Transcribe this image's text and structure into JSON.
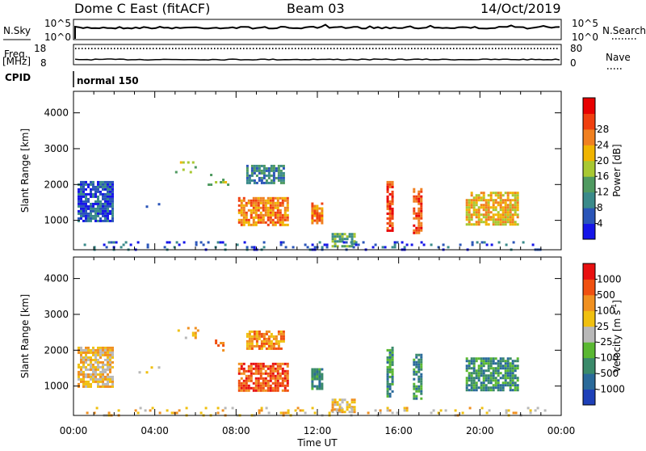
{
  "header": {
    "station": "Dome C East (fitACF)",
    "beam": "Beam 03",
    "date": "14/Oct/2019"
  },
  "top_panels": {
    "nsky_label": "N.Sky",
    "nsky_ticks": [
      "10^5",
      "10^0"
    ],
    "nsearch_label": "N.Search",
    "freq_label_top": "Freq.",
    "freq_label_bottom": "[MHz]",
    "freq_ticks": [
      "18",
      "8"
    ],
    "nave_label": "Nave",
    "nave_ticks": [
      "80",
      "0"
    ],
    "cpid_label": "CPID",
    "cpid_value": "normal 150"
  },
  "chart_data": [
    {
      "type": "heatmap",
      "name": "power",
      "ylabel": "Slant Range [km]",
      "ylim": [
        180,
        4600
      ],
      "y_ticks": [
        1000,
        2000,
        3000,
        4000
      ],
      "xlim": [
        0,
        24
      ],
      "x_tick_labels": [
        "00:00",
        "04:00",
        "08:00",
        "12:00",
        "16:00",
        "20:00",
        "00:00"
      ],
      "colorbar": {
        "label": "Power [dB]",
        "tick_labels": [
          "4",
          "8",
          "12",
          "16",
          "20",
          "24",
          "28"
        ],
        "colors": [
          "#1515e8",
          "#2a55b8",
          "#3a8a8a",
          "#4f9a60",
          "#a8c832",
          "#f0b400",
          "#f08020",
          "#f04010",
          "#e80000"
        ]
      },
      "regions": [
        {
          "x0": 8.1,
          "x1": 10.6,
          "y0": 900,
          "y1": 1650,
          "level": 6
        },
        {
          "x0": 5.0,
          "x1": 6.1,
          "y0": 2350,
          "y1": 2650,
          "level": 4
        },
        {
          "x0": 6.6,
          "x1": 7.6,
          "y0": 2000,
          "y1": 2300,
          "level": 4
        },
        {
          "x0": 8.5,
          "x1": 10.3,
          "y0": 2050,
          "y1": 2550,
          "level": 2
        },
        {
          "x0": 11.7,
          "x1": 12.2,
          "y0": 950,
          "y1": 1500,
          "level": 6
        },
        {
          "x0": 15.4,
          "x1": 15.7,
          "y0": 700,
          "y1": 2100,
          "level": 7
        },
        {
          "x0": 16.7,
          "x1": 17.1,
          "y0": 650,
          "y1": 1900,
          "level": 7
        },
        {
          "x0": 19.3,
          "x1": 21.9,
          "y0": 900,
          "y1": 1800,
          "level": 5
        },
        {
          "x0": 12.7,
          "x1": 13.8,
          "y0": 250,
          "y1": 650,
          "level": 3
        },
        {
          "x0": 0.2,
          "x1": 1.9,
          "y0": 1000,
          "y1": 2100,
          "level": 1
        },
        {
          "x0": 3.2,
          "x1": 4.2,
          "y0": 1350,
          "y1": 1550,
          "level": 1
        },
        {
          "x0": 0.5,
          "x1": 23.5,
          "y0": 190,
          "y1": 420,
          "level": 1
        }
      ]
    },
    {
      "type": "heatmap",
      "name": "velocity",
      "ylabel": "Slant Range [km]",
      "ylim": [
        180,
        4600
      ],
      "y_ticks": [
        1000,
        2000,
        3000,
        4000
      ],
      "xlim": [
        0,
        24
      ],
      "x_tick_labels": [
        "00:00",
        "04:00",
        "08:00",
        "12:00",
        "16:00",
        "20:00",
        "00:00"
      ],
      "xlabel": "Time UT",
      "colorbar": {
        "label": "Velocity [m s",
        "label_sup": "-1",
        "label_end": "]",
        "tick_labels": [
          "1000",
          "500",
          "100",
          "25",
          "-25",
          "-100",
          "-500",
          "-1000"
        ],
        "colors": [
          "#1e40b8",
          "#2a6a9a",
          "#3a8a6a",
          "#5ab832",
          "#b8b8b8",
          "#f0c010",
          "#f09020",
          "#f05010",
          "#e81010"
        ]
      },
      "regions": [
        {
          "x0": 8.1,
          "x1": 10.6,
          "y0": 900,
          "y1": 1650,
          "level": 7
        },
        {
          "x0": 5.0,
          "x1": 6.1,
          "y0": 2350,
          "y1": 2650,
          "level": 5
        },
        {
          "x0": 6.6,
          "x1": 7.6,
          "y0": 2000,
          "y1": 2300,
          "level": 6
        },
        {
          "x0": 8.5,
          "x1": 10.3,
          "y0": 2050,
          "y1": 2550,
          "level": 6
        },
        {
          "x0": 11.7,
          "x1": 12.2,
          "y0": 950,
          "y1": 1500,
          "level": 2
        },
        {
          "x0": 15.4,
          "x1": 15.7,
          "y0": 700,
          "y1": 2100,
          "level": 2
        },
        {
          "x0": 16.7,
          "x1": 17.1,
          "y0": 650,
          "y1": 1900,
          "level": 2
        },
        {
          "x0": 19.3,
          "x1": 21.9,
          "y0": 900,
          "y1": 1800,
          "level": 2
        },
        {
          "x0": 12.7,
          "x1": 13.8,
          "y0": 250,
          "y1": 650,
          "level": 5
        },
        {
          "x0": 0.2,
          "x1": 1.9,
          "y0": 1000,
          "y1": 2100,
          "level": 5
        },
        {
          "x0": 3.2,
          "x1": 4.2,
          "y0": 1350,
          "y1": 1550,
          "level": 4
        },
        {
          "x0": 0.5,
          "x1": 23.5,
          "y0": 190,
          "y1": 420,
          "level": 5
        }
      ]
    }
  ]
}
